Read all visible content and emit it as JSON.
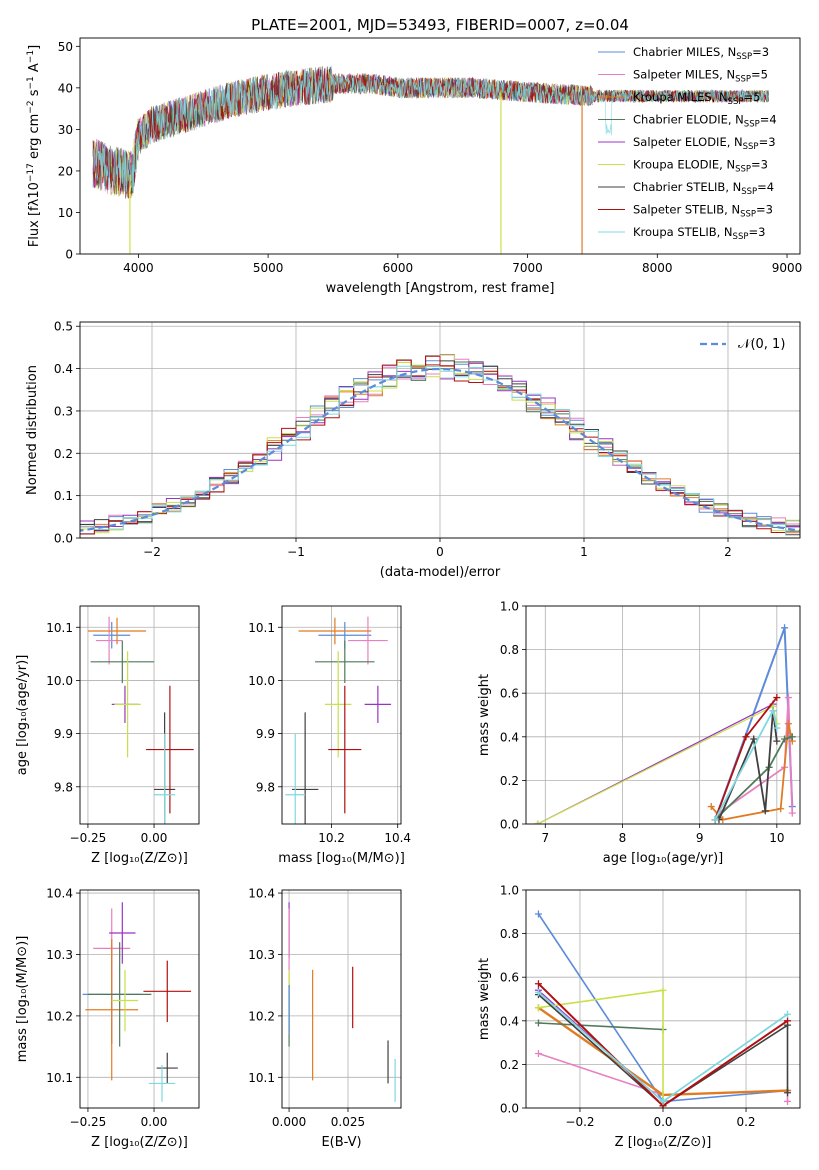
{
  "figure": {
    "title": "PLATE=2001, MJD=53493, FIBERID=0007, z=0.04"
  },
  "chart_data": [
    {
      "id": "spectrum",
      "type": "line",
      "xlabel": "wavelength [Angstrom, rest frame]",
      "ylabel": "Flux [f$_\\lambda$10$^{-17}$ erg cm$^{-2}$ s$^{-1}$ A$^{-1}$]",
      "ylabel_text": "Flux [fλ10",
      "ylabel_sup1": "−17",
      "ylabel_mid": " erg cm",
      "ylabel_sup2": "−2",
      "ylabel_mid2": " s",
      "ylabel_sup3": "−1",
      "ylabel_end": " A",
      "ylabel_sup4": "−1",
      "ylabel_close": "]",
      "xlim": [
        3550,
        9100
      ],
      "ylim": [
        0,
        52
      ],
      "xticks": [
        4000,
        5000,
        6000,
        7000,
        8000,
        9000
      ],
      "yticks": [
        0,
        10,
        20,
        30,
        40,
        50
      ],
      "legend_position": "top-right",
      "legend": [
        {
          "pre": "Chabrier MILES, N",
          "sub": "SSP",
          "post": "=3",
          "color": "#5b8bd9"
        },
        {
          "pre": "Salpeter MILES, N",
          "sub": "SSP",
          "post": "=5",
          "color": "#e87fc1"
        },
        {
          "pre": "Kroupa MILES, N",
          "sub": "SSP",
          "post": "=5",
          "color": "#e07b24"
        },
        {
          "pre": "Chabrier ELODIE, N",
          "sub": "SSP",
          "post": "=4",
          "color": "#4f7a5a"
        },
        {
          "pre": "Salpeter ELODIE, N",
          "sub": "SSP",
          "post": "=3",
          "color": "#9a33c4"
        },
        {
          "pre": "Kroupa ELODIE, N",
          "sub": "SSP",
          "post": "=3",
          "color": "#c8e04a"
        },
        {
          "pre": "Chabrier STELIB, N",
          "sub": "SSP",
          "post": "=4",
          "color": "#404040"
        },
        {
          "pre": "Salpeter STELIB, N",
          "sub": "SSP",
          "post": "=3",
          "color": "#b01010"
        },
        {
          "pre": "Kroupa STELIB, N",
          "sub": "SSP",
          "post": "=3",
          "color": "#7fd8e0"
        }
      ],
      "continuum": [
        [
          3650,
          22
        ],
        [
          3800,
          20
        ],
        [
          3950,
          19
        ],
        [
          4000,
          28
        ],
        [
          4100,
          31
        ],
        [
          4300,
          33
        ],
        [
          4500,
          35
        ],
        [
          4700,
          37
        ],
        [
          5000,
          39
        ],
        [
          5200,
          40
        ],
        [
          5500,
          41
        ],
        [
          5800,
          41
        ],
        [
          6000,
          40
        ],
        [
          6300,
          40
        ],
        [
          6600,
          40
        ],
        [
          7000,
          39
        ],
        [
          7500,
          38
        ],
        [
          8000,
          38
        ],
        [
          8500,
          38
        ],
        [
          8860,
          38
        ]
      ],
      "drops": [
        {
          "x": 3935,
          "y": 0,
          "color": "#c8e04a"
        },
        {
          "x": 6795,
          "y": 0,
          "color": "#c8e04a"
        },
        {
          "x": 7420,
          "y": 0,
          "color": "#e07b24"
        }
      ]
    },
    {
      "id": "residuals",
      "type": "line",
      "xlabel": "(data-model)/error",
      "ylabel": "Normed distribution",
      "xlim": [
        -2.5,
        2.5
      ],
      "ylim": [
        0,
        0.51
      ],
      "xticks": [
        -2,
        -1,
        0,
        1,
        2
      ],
      "xticklabels": [
        "−2",
        "−1",
        "0",
        "1",
        "2"
      ],
      "yticks": [
        0.0,
        0.1,
        0.2,
        0.3,
        0.4,
        0.5
      ],
      "yticklabels": [
        "0.0",
        "0.1",
        "0.2",
        "0.3",
        "0.4",
        "0.5"
      ],
      "legend_position": "top-right",
      "legend": [
        {
          "label": "𝒩(0, 1)",
          "color": "#5b8bd9",
          "style": "dashed"
        }
      ]
    },
    {
      "id": "age_vs_Z",
      "type": "scatter",
      "xlabel": "Z [log₁₀(Z/Z⊙)]",
      "ylabel": "age  [log₁₀(age/yr)]",
      "xlim": [
        -0.28,
        0.17
      ],
      "ylim": [
        9.73,
        10.14
      ],
      "xticks": [
        -0.25,
        0.0
      ],
      "xticklabels": [
        "−0.25",
        "0.00"
      ],
      "yticks": [
        9.8,
        9.9,
        10.0,
        10.1
      ],
      "yticklabels": [
        "9.8",
        "9.9",
        "10.0",
        "10.1"
      ],
      "points": [
        {
          "x": -0.16,
          "y": 10.085,
          "xerr": 0.07,
          "yerr": 0.025,
          "color": "#5b8bd9"
        },
        {
          "x": -0.17,
          "y": 10.075,
          "xerr": 0.05,
          "yerr": 0.045,
          "color": "#e87fc1"
        },
        {
          "x": -0.14,
          "y": 10.093,
          "xerr": 0.11,
          "yerr": 0.025,
          "color": "#e07b24"
        },
        {
          "x": -0.12,
          "y": 10.035,
          "xerr": 0.12,
          "yerr": 0.04,
          "color": "#4f7a5a"
        },
        {
          "x": -0.11,
          "y": 9.955,
          "xerr": 0.05,
          "yerr": 0.035,
          "color": "#9a33c4"
        },
        {
          "x": -0.1,
          "y": 9.955,
          "xerr": 0.05,
          "yerr": 0.1,
          "color": "#c8e04a"
        },
        {
          "x": 0.04,
          "y": 9.795,
          "xerr": 0.04,
          "yerr": 0.145,
          "color": "#404040"
        },
        {
          "x": 0.06,
          "y": 9.87,
          "xerr": 0.09,
          "yerr": 0.12,
          "color": "#b01010"
        },
        {
          "x": 0.04,
          "y": 9.785,
          "xerr": 0.04,
          "yerr": 0.115,
          "color": "#7fd8e0"
        }
      ]
    },
    {
      "id": "age_vs_mass",
      "type": "scatter",
      "xlabel": "mass [log₁₀(M/M⊙)]",
      "ylabel": "",
      "xlim": [
        10.05,
        10.41
      ],
      "ylim": [
        9.73,
        10.14
      ],
      "xticks": [
        10.2,
        10.4
      ],
      "xticklabels": [
        "10.2",
        "10.4"
      ],
      "yticks": [
        9.8,
        9.9,
        10.0,
        10.1
      ],
      "yticklabels": [
        "9.8",
        "9.9",
        "10.0",
        "10.1"
      ],
      "points": [
        {
          "x": 10.24,
          "y": 10.085,
          "xerr": 0.08,
          "yerr": 0.025,
          "color": "#5b8bd9"
        },
        {
          "x": 10.31,
          "y": 10.075,
          "xerr": 0.06,
          "yerr": 0.045,
          "color": "#e87fc1"
        },
        {
          "x": 10.21,
          "y": 10.093,
          "xerr": 0.11,
          "yerr": 0.025,
          "color": "#e07b24"
        },
        {
          "x": 10.24,
          "y": 10.035,
          "xerr": 0.09,
          "yerr": 0.04,
          "color": "#4f7a5a"
        },
        {
          "x": 10.34,
          "y": 9.955,
          "xerr": 0.04,
          "yerr": 0.035,
          "color": "#9a33c4"
        },
        {
          "x": 10.22,
          "y": 9.955,
          "xerr": 0.04,
          "yerr": 0.1,
          "color": "#c8e04a"
        },
        {
          "x": 10.12,
          "y": 9.795,
          "xerr": 0.04,
          "yerr": 0.145,
          "color": "#404040"
        },
        {
          "x": 10.24,
          "y": 9.87,
          "xerr": 0.05,
          "yerr": 0.12,
          "color": "#b01010"
        },
        {
          "x": 10.09,
          "y": 9.785,
          "xerr": 0.03,
          "yerr": 0.115,
          "color": "#7fd8e0"
        }
      ]
    },
    {
      "id": "weight_vs_age",
      "type": "line",
      "xlabel": "age  [log₁₀(age/yr)]",
      "ylabel": "mass weight",
      "xlim": [
        6.75,
        10.3
      ],
      "ylim": [
        0,
        1.0
      ],
      "xticks": [
        7,
        8,
        9,
        10
      ],
      "xticklabels": [
        "7",
        "8",
        "9",
        "10"
      ],
      "yticks": [
        0,
        0.2,
        0.4,
        0.6,
        0.8,
        1.0
      ],
      "yticklabels": [
        "0.0",
        "0.2",
        "0.4",
        "0.6",
        "0.8",
        "1.0"
      ],
      "series": [
        {
          "color": "#5b8bd9",
          "width": 2,
          "points": [
            [
              9.2,
              0.02
            ],
            [
              10.1,
              0.9
            ],
            [
              10.2,
              0.08
            ]
          ]
        },
        {
          "color": "#e87fc1",
          "width": 1.8,
          "points": [
            [
              9.25,
              0.05
            ],
            [
              10.1,
              0.26
            ],
            [
              10.15,
              0.58
            ],
            [
              10.2,
              0.05
            ]
          ]
        },
        {
          "color": "#e07b24",
          "width": 1.8,
          "points": [
            [
              9.15,
              0.08
            ],
            [
              9.3,
              0.02
            ],
            [
              10.05,
              0.07
            ],
            [
              10.15,
              0.46
            ],
            [
              10.2,
              0.38
            ]
          ]
        },
        {
          "color": "#4f7a5a",
          "width": 1.8,
          "points": [
            [
              9.2,
              0.02
            ],
            [
              9.9,
              0.26
            ],
            [
              10.1,
              0.39
            ],
            [
              10.2,
              0.4
            ]
          ]
        },
        {
          "color": "#9a33c4",
          "width": 1.2,
          "points": [
            [
              6.9,
              0.0
            ],
            [
              9.95,
              0.55
            ]
          ]
        },
        {
          "color": "#c8e04a",
          "width": 1.2,
          "points": [
            [
              6.9,
              0.0
            ],
            [
              9.95,
              0.54
            ],
            [
              10.0,
              0.46
            ]
          ]
        },
        {
          "color": "#404040",
          "width": 1.8,
          "points": [
            [
              9.25,
              0.02
            ],
            [
              9.7,
              0.39
            ],
            [
              9.85,
              0.06
            ],
            [
              9.95,
              0.52
            ],
            [
              10.0,
              0.38
            ]
          ]
        },
        {
          "color": "#b01010",
          "width": 1.8,
          "points": [
            [
              9.2,
              0.02
            ],
            [
              9.6,
              0.4
            ],
            [
              10.0,
              0.58
            ]
          ]
        },
        {
          "color": "#7fd8e0",
          "width": 1.8,
          "points": [
            [
              9.2,
              0.02
            ],
            [
              9.95,
              0.52
            ],
            [
              10.0,
              0.44
            ]
          ]
        }
      ]
    },
    {
      "id": "mass_vs_Z",
      "type": "scatter",
      "xlabel": "Z [log₁₀(Z/Z⊙)]",
      "ylabel": "mass [log₁₀(M/M⊙)]",
      "xlim": [
        -0.28,
        0.17
      ],
      "ylim": [
        10.05,
        10.405
      ],
      "xticks": [
        -0.25,
        0.0
      ],
      "xticklabels": [
        "−0.25",
        "0.00"
      ],
      "yticks": [
        10.1,
        10.2,
        10.3,
        10.4
      ],
      "yticklabels": [
        "10.1",
        "10.2",
        "10.3",
        "10.4"
      ],
      "points": [
        {
          "x": -0.16,
          "y": 10.235,
          "xerr": 0.11,
          "yerr": 0.08,
          "color": "#5b8bd9"
        },
        {
          "x": -0.16,
          "y": 10.31,
          "xerr": 0.07,
          "yerr": 0.065,
          "color": "#e87fc1"
        },
        {
          "x": -0.16,
          "y": 10.21,
          "xerr": 0.1,
          "yerr": 0.115,
          "color": "#e07b24"
        },
        {
          "x": -0.13,
          "y": 10.235,
          "xerr": 0.12,
          "yerr": 0.085,
          "color": "#4f7a5a"
        },
        {
          "x": -0.12,
          "y": 10.335,
          "xerr": 0.05,
          "yerr": 0.05,
          "color": "#9a33c4"
        },
        {
          "x": -0.11,
          "y": 10.225,
          "xerr": 0.05,
          "yerr": 0.05,
          "color": "#c8e04a"
        },
        {
          "x": 0.05,
          "y": 10.115,
          "xerr": 0.04,
          "yerr": 0.025,
          "color": "#404040"
        },
        {
          "x": 0.05,
          "y": 10.24,
          "xerr": 0.09,
          "yerr": 0.05,
          "color": "#b01010"
        },
        {
          "x": 0.03,
          "y": 10.09,
          "xerr": 0.05,
          "yerr": 0.03,
          "color": "#7fd8e0"
        }
      ]
    },
    {
      "id": "mass_vs_ebv",
      "type": "scatter",
      "xlabel": "E(B-V)",
      "ylabel": "",
      "xlim": [
        -0.003,
        0.0475
      ],
      "ylim": [
        10.05,
        10.405
      ],
      "xticks": [
        0.0,
        0.025
      ],
      "xticklabels": [
        "0.000",
        "0.025"
      ],
      "yticks": [
        10.1,
        10.2,
        10.3,
        10.4
      ],
      "yticklabels": [
        "10.1",
        "10.2",
        "10.3",
        "10.4"
      ],
      "points": [
        {
          "x": 0.0,
          "y": 10.34,
          "xerr": 0.0,
          "yerr": 0.045,
          "color": "#9a33c4"
        },
        {
          "x": 0.0,
          "y": 10.31,
          "xerr": 0.0,
          "yerr": 0.065,
          "color": "#e87fc1"
        },
        {
          "x": 0.0,
          "y": 10.225,
          "xerr": 0.0,
          "yerr": 0.05,
          "color": "#c8e04a"
        },
        {
          "x": 0.0,
          "y": 10.2,
          "xerr": 0.0,
          "yerr": 0.05,
          "color": "#4f7a5a"
        },
        {
          "x": 0.0,
          "y": 10.21,
          "xerr": 0.0,
          "yerr": 0.04,
          "color": "#5b8bd9"
        },
        {
          "x": 0.01,
          "y": 10.185,
          "xerr": 0.0,
          "yerr": 0.09,
          "color": "#e07b24"
        },
        {
          "x": 0.027,
          "y": 10.23,
          "xerr": 0.0,
          "yerr": 0.05,
          "color": "#b01010"
        },
        {
          "x": 0.042,
          "y": 10.125,
          "xerr": 0.0,
          "yerr": 0.035,
          "color": "#404040"
        },
        {
          "x": 0.045,
          "y": 10.095,
          "xerr": 0.0,
          "yerr": 0.035,
          "color": "#7fd8e0"
        }
      ]
    },
    {
      "id": "weight_vs_Z",
      "type": "line",
      "xlabel": "Z [log₁₀(Z/Z⊙)]",
      "ylabel": "mass weight",
      "xlim": [
        -0.33,
        0.33
      ],
      "ylim": [
        0,
        1.0
      ],
      "xticks": [
        -0.2,
        0.0,
        0.2
      ],
      "xticklabels": [
        "−0.2",
        "0.0",
        "0.2"
      ],
      "yticks": [
        0,
        0.2,
        0.4,
        0.6,
        0.8,
        1.0
      ],
      "yticklabels": [
        "0.0",
        "0.2",
        "0.4",
        "0.6",
        "0.8",
        "1.0"
      ],
      "series": [
        {
          "color": "#5b8bd9",
          "width": 1.6,
          "points": [
            [
              -0.3,
              0.89
            ],
            [
              0.0,
              0.03
            ],
            [
              0.3,
              0.08
            ]
          ]
        },
        {
          "color": "#e87fc1",
          "width": 1.6,
          "points": [
            [
              -0.3,
              0.25
            ],
            [
              0.0,
              0.06
            ],
            [
              0.3,
              0.08
            ],
            [
              0.3,
              0.03
            ]
          ]
        },
        {
          "color": "#e07b24",
          "width": 2.4,
          "points": [
            [
              -0.3,
              0.46
            ],
            [
              0.0,
              0.06
            ],
            [
              0.3,
              0.08
            ]
          ]
        },
        {
          "color": "#4f7a5a",
          "width": 1.6,
          "points": [
            [
              -0.3,
              0.39
            ],
            [
              0.0,
              0.36
            ]
          ]
        },
        {
          "color": "#9a33c4",
          "width": 1.2,
          "points": [
            [
              -0.3,
              0.54
            ],
            [
              0.0,
              0.03
            ]
          ]
        },
        {
          "color": "#c8e04a",
          "width": 1.6,
          "points": [
            [
              -0.3,
              0.46
            ],
            [
              0.0,
              0.54
            ],
            [
              0.0,
              0.03
            ]
          ]
        },
        {
          "color": "#404040",
          "width": 1.6,
          "points": [
            [
              -0.3,
              0.52
            ],
            [
              0.0,
              0.01
            ],
            [
              0.3,
              0.38
            ],
            [
              0.3,
              0.07
            ]
          ]
        },
        {
          "color": "#b01010",
          "width": 2.0,
          "points": [
            [
              -0.3,
              0.57
            ],
            [
              0.0,
              0.01
            ],
            [
              0.3,
              0.4
            ]
          ]
        },
        {
          "color": "#7fd8e0",
          "width": 1.8,
          "points": [
            [
              -0.3,
              0.53
            ],
            [
              0.0,
              0.03
            ],
            [
              0.3,
              0.43
            ]
          ]
        }
      ]
    }
  ]
}
